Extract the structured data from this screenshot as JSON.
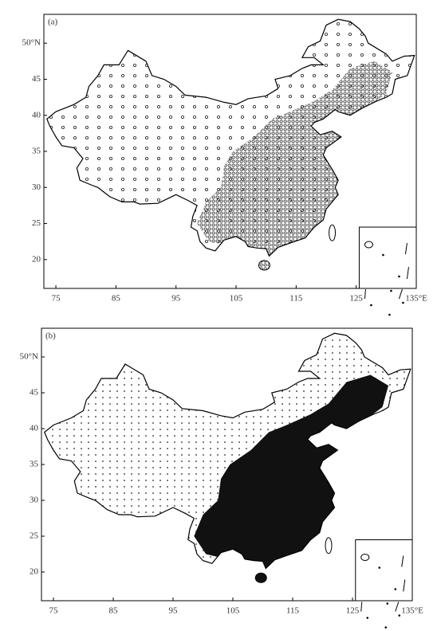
{
  "chart_data": [
    {
      "type": "map",
      "title": "(a)",
      "xlim": [
        73,
        135
      ],
      "ylim": [
        16,
        54
      ],
      "xticks": [
        75,
        85,
        95,
        105,
        115,
        125,
        {
          "value": 135,
          "label": "135°E"
        }
      ],
      "yticks": [
        20,
        25,
        30,
        35,
        40,
        45,
        {
          "value": 50,
          "label": "50°N"
        }
      ]
    },
    {
      "type": "map",
      "title": "(b)",
      "xlim": [
        73,
        135
      ],
      "ylim": [
        16,
        54
      ],
      "xticks": [
        75,
        85,
        95,
        105,
        115,
        125,
        {
          "value": 135,
          "label": "135°E"
        }
      ],
      "yticks": [
        20,
        25,
        30,
        35,
        40,
        45,
        {
          "value": 50,
          "label": "50°N"
        }
      ]
    }
  ]
}
